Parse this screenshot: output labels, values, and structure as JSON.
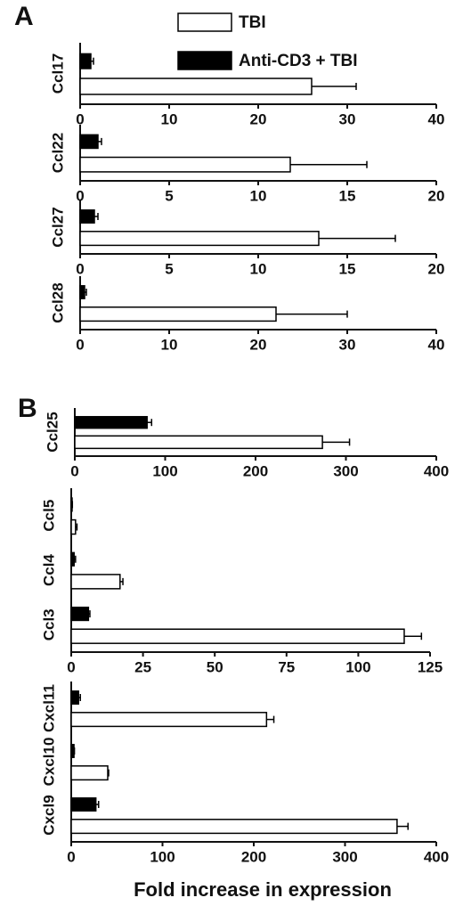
{
  "chart_data": [
    {
      "type": "hbar",
      "panel": "A",
      "categories": [
        "Ccl17"
      ],
      "xlim": [
        0,
        40
      ],
      "xticks": [
        0,
        10,
        20,
        30,
        40
      ],
      "series": [
        {
          "name": "TBI",
          "color": "#ffffff",
          "values": [
            26
          ],
          "errors": [
            5
          ]
        },
        {
          "name": "Anti-CD3 + TBI",
          "color": "#000000",
          "values": [
            1.2
          ],
          "errors": [
            0.3
          ]
        }
      ]
    },
    {
      "type": "hbar",
      "categories": [
        "Ccl22"
      ],
      "xlim": [
        0,
        20
      ],
      "xticks": [
        0,
        5,
        10,
        15,
        20
      ],
      "series": [
        {
          "color": "#ffffff",
          "values": [
            11.8
          ],
          "errors": [
            4.3
          ]
        },
        {
          "color": "#000000",
          "values": [
            1.0
          ],
          "errors": [
            0.2
          ]
        }
      ]
    },
    {
      "type": "hbar",
      "categories": [
        "Ccl27"
      ],
      "xlim": [
        0,
        20
      ],
      "xticks": [
        0,
        5,
        10,
        15,
        20
      ],
      "series": [
        {
          "color": "#ffffff",
          "values": [
            13.4
          ],
          "errors": [
            4.3
          ]
        },
        {
          "color": "#000000",
          "values": [
            0.8
          ],
          "errors": [
            0.2
          ]
        }
      ]
    },
    {
      "type": "hbar",
      "categories": [
        "Ccl28"
      ],
      "xlim": [
        0,
        40
      ],
      "xticks": [
        0,
        10,
        20,
        30,
        40
      ],
      "series": [
        {
          "color": "#ffffff",
          "values": [
            22
          ],
          "errors": [
            8
          ]
        },
        {
          "color": "#000000",
          "values": [
            0.5
          ],
          "errors": [
            0.2
          ]
        }
      ]
    },
    {
      "type": "hbar",
      "panel": "B",
      "categories": [
        "Ccl25"
      ],
      "xlim": [
        0,
        400
      ],
      "xticks": [
        0,
        100,
        200,
        300,
        400
      ],
      "series": [
        {
          "color": "#ffffff",
          "values": [
            274
          ],
          "errors": [
            30
          ]
        },
        {
          "color": "#000000",
          "values": [
            80
          ],
          "errors": [
            5
          ]
        }
      ]
    },
    {
      "type": "hbar",
      "categories": [
        "Ccl5",
        "Ccl4",
        "Ccl3"
      ],
      "xlim": [
        0,
        125
      ],
      "xticks": [
        0,
        25,
        50,
        75,
        100,
        125
      ],
      "series": [
        {
          "color": "#ffffff",
          "values": [
            1.5,
            17,
            116
          ],
          "errors": [
            0.5,
            1,
            6
          ]
        },
        {
          "color": "#000000",
          "values": [
            0.3,
            1,
            6
          ],
          "errors": [
            0.1,
            0.5,
            0.5
          ]
        }
      ]
    },
    {
      "type": "hbar",
      "categories": [
        "Cxcl11",
        "Cxcl10",
        "Cxcl9"
      ],
      "xlim": [
        0,
        400
      ],
      "xticks": [
        0,
        100,
        200,
        300,
        400
      ],
      "xlabel": "Fold increase in expression",
      "series": [
        {
          "color": "#ffffff",
          "values": [
            214,
            40,
            357
          ],
          "errors": [
            8,
            1,
            12
          ]
        },
        {
          "color": "#000000",
          "values": [
            8,
            3,
            27
          ],
          "errors": [
            2,
            0.5,
            3
          ]
        }
      ]
    }
  ]
}
